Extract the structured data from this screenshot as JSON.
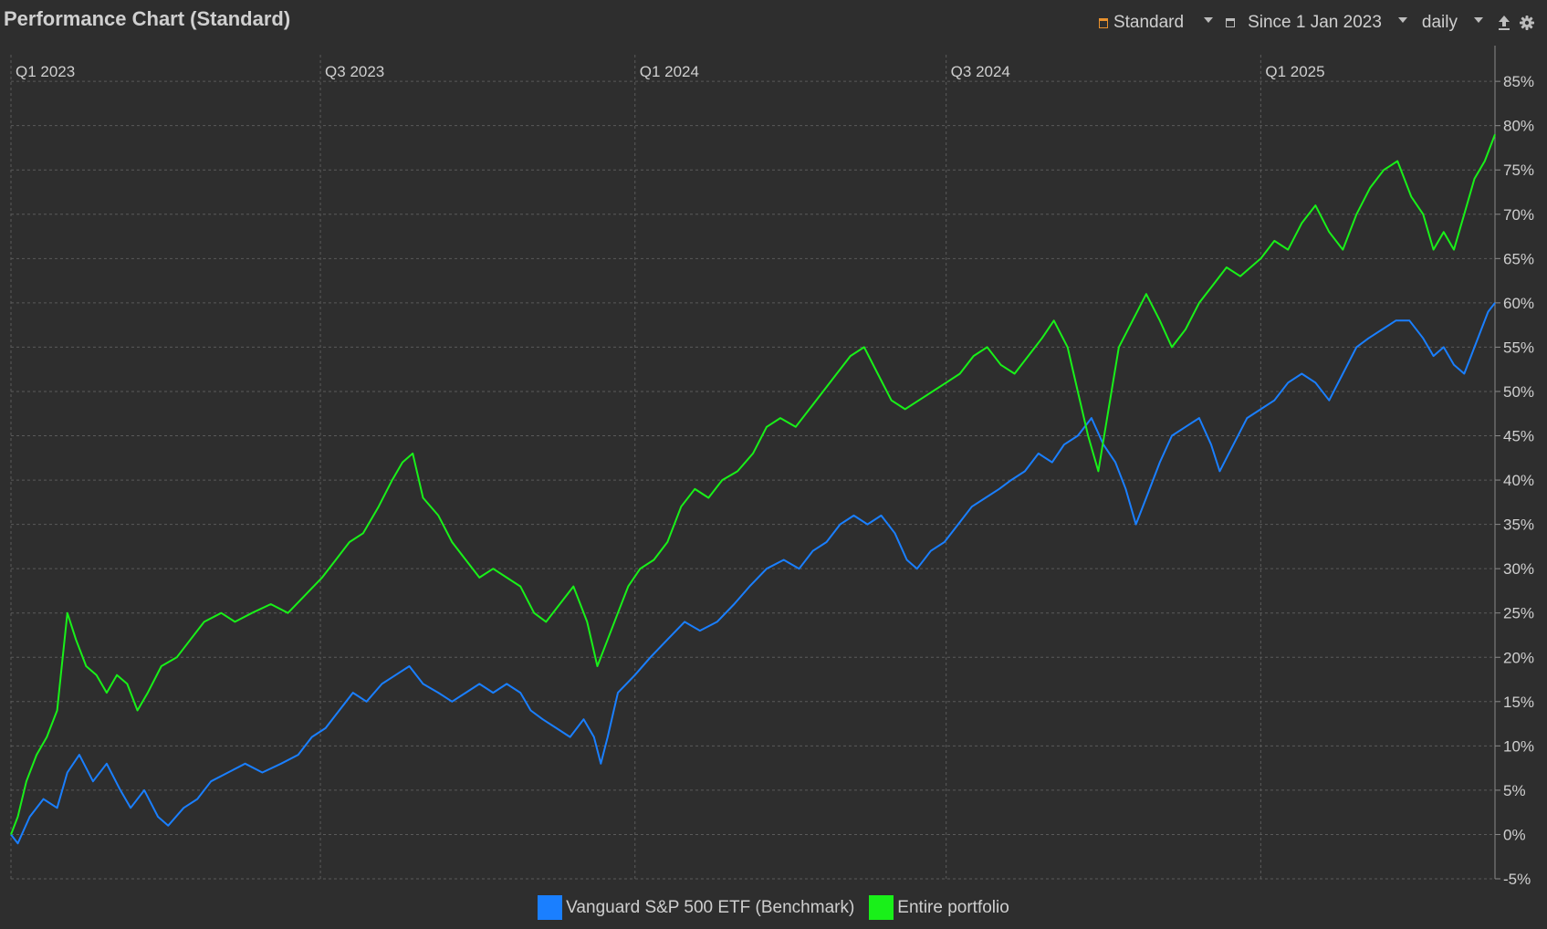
{
  "header": {
    "title": "Performance Chart (Standard)",
    "toolbar": {
      "view_label": "Standard",
      "period_label": "Since 1 Jan 2023",
      "interval_label": "daily"
    }
  },
  "colors": {
    "background": "#2e2e2e",
    "grid": "#5a5a5a",
    "benchmark": "#1a7fff",
    "portfolio": "#19f019",
    "accent": "#e8912e"
  },
  "chart_data": {
    "type": "line",
    "xlabel": "",
    "ylabel": "",
    "x_ticks": [
      "Q1 2023",
      "Q3 2023",
      "Q1 2024",
      "Q3 2024",
      "Q1 2025"
    ],
    "x_tick_dates": [
      "2023-01-01",
      "2023-07-01",
      "2024-01-01",
      "2024-07-01",
      "2025-01-01"
    ],
    "x_range": [
      "2023-01-01",
      "2025-05-18"
    ],
    "y_ticks": [
      "85%",
      "80%",
      "75%",
      "70%",
      "65%",
      "60%",
      "55%",
      "50%",
      "45%",
      "40%",
      "35%",
      "30%",
      "25%",
      "20%",
      "15%",
      "10%",
      "5%",
      "0%",
      "-5%"
    ],
    "ylim": [
      -5,
      88
    ],
    "y_unit": "%",
    "grid": true,
    "legend_position": "bottom-center",
    "series": [
      {
        "name": "Vanguard S&P 500 ETF (Benchmark)",
        "color": "#1a7fff",
        "points": [
          [
            "2023-01-01",
            0
          ],
          [
            "2023-01-05",
            -1
          ],
          [
            "2023-01-12",
            2
          ],
          [
            "2023-01-20",
            4
          ],
          [
            "2023-01-28",
            3
          ],
          [
            "2023-02-03",
            7
          ],
          [
            "2023-02-10",
            9
          ],
          [
            "2023-02-18",
            6
          ],
          [
            "2023-02-26",
            8
          ],
          [
            "2023-03-06",
            5
          ],
          [
            "2023-03-12",
            3
          ],
          [
            "2023-03-20",
            5
          ],
          [
            "2023-03-28",
            2
          ],
          [
            "2023-04-03",
            1
          ],
          [
            "2023-04-12",
            3
          ],
          [
            "2023-04-20",
            4
          ],
          [
            "2023-04-28",
            6
          ],
          [
            "2023-05-08",
            7
          ],
          [
            "2023-05-18",
            8
          ],
          [
            "2023-05-28",
            7
          ],
          [
            "2023-06-08",
            8
          ],
          [
            "2023-06-18",
            9
          ],
          [
            "2023-06-26",
            11
          ],
          [
            "2023-07-04",
            12
          ],
          [
            "2023-07-12",
            14
          ],
          [
            "2023-07-20",
            16
          ],
          [
            "2023-07-28",
            15
          ],
          [
            "2023-08-06",
            17
          ],
          [
            "2023-08-14",
            18
          ],
          [
            "2023-08-22",
            19
          ],
          [
            "2023-08-30",
            17
          ],
          [
            "2023-09-08",
            16
          ],
          [
            "2023-09-16",
            15
          ],
          [
            "2023-09-24",
            16
          ],
          [
            "2023-10-02",
            17
          ],
          [
            "2023-10-10",
            16
          ],
          [
            "2023-10-18",
            17
          ],
          [
            "2023-10-26",
            16
          ],
          [
            "2023-11-01",
            14
          ],
          [
            "2023-11-08",
            13
          ],
          [
            "2023-11-16",
            12
          ],
          [
            "2023-11-24",
            11
          ],
          [
            "2023-12-02",
            13
          ],
          [
            "2023-12-08",
            11
          ],
          [
            "2023-12-12",
            8
          ],
          [
            "2023-12-16",
            11
          ],
          [
            "2023-12-22",
            16
          ],
          [
            "2024-01-01",
            18
          ],
          [
            "2024-01-10",
            20
          ],
          [
            "2024-01-20",
            22
          ],
          [
            "2024-01-30",
            24
          ],
          [
            "2024-02-08",
            23
          ],
          [
            "2024-02-18",
            24
          ],
          [
            "2024-02-28",
            26
          ],
          [
            "2024-03-08",
            28
          ],
          [
            "2024-03-18",
            30
          ],
          [
            "2024-03-28",
            31
          ],
          [
            "2024-04-06",
            30
          ],
          [
            "2024-04-14",
            32
          ],
          [
            "2024-04-22",
            33
          ],
          [
            "2024-04-30",
            35
          ],
          [
            "2024-05-08",
            36
          ],
          [
            "2024-05-16",
            35
          ],
          [
            "2024-05-24",
            36
          ],
          [
            "2024-06-01",
            34
          ],
          [
            "2024-06-08",
            31
          ],
          [
            "2024-06-14",
            30
          ],
          [
            "2024-06-22",
            32
          ],
          [
            "2024-06-30",
            33
          ],
          [
            "2024-07-08",
            35
          ],
          [
            "2024-07-16",
            37
          ],
          [
            "2024-07-24",
            38
          ],
          [
            "2024-08-01",
            39
          ],
          [
            "2024-08-08",
            40
          ],
          [
            "2024-08-16",
            41
          ],
          [
            "2024-08-24",
            43
          ],
          [
            "2024-09-01",
            42
          ],
          [
            "2024-09-08",
            44
          ],
          [
            "2024-09-16",
            45
          ],
          [
            "2024-09-24",
            47
          ],
          [
            "2024-10-01",
            44
          ],
          [
            "2024-10-08",
            42
          ],
          [
            "2024-10-14",
            39
          ],
          [
            "2024-10-20",
            35
          ],
          [
            "2024-10-26",
            38
          ],
          [
            "2024-11-03",
            42
          ],
          [
            "2024-11-10",
            45
          ],
          [
            "2024-11-18",
            46
          ],
          [
            "2024-11-26",
            47
          ],
          [
            "2024-12-03",
            44
          ],
          [
            "2024-12-08",
            41
          ],
          [
            "2024-12-16",
            44
          ],
          [
            "2024-12-24",
            47
          ],
          [
            "2025-01-01",
            48
          ],
          [
            "2025-01-09",
            49
          ],
          [
            "2025-01-17",
            51
          ],
          [
            "2025-01-25",
            52
          ],
          [
            "2025-02-02",
            51
          ],
          [
            "2025-02-10",
            49
          ],
          [
            "2025-02-18",
            52
          ],
          [
            "2025-02-26",
            55
          ],
          [
            "2025-03-05",
            56
          ],
          [
            "2025-03-13",
            57
          ],
          [
            "2025-03-21",
            58
          ],
          [
            "2025-03-29",
            58
          ],
          [
            "2025-04-06",
            56
          ],
          [
            "2025-04-12",
            54
          ],
          [
            "2025-04-18",
            55
          ],
          [
            "2025-04-24",
            53
          ],
          [
            "2025-04-30",
            52
          ],
          [
            "2025-05-04",
            54
          ],
          [
            "2025-05-10",
            57
          ],
          [
            "2025-05-14",
            59
          ],
          [
            "2025-05-18",
            60
          ]
        ]
      },
      {
        "name": "Entire portfolio",
        "color": "#19f019",
        "points": [
          [
            "2023-01-01",
            0
          ],
          [
            "2023-01-05",
            2
          ],
          [
            "2023-01-10",
            6
          ],
          [
            "2023-01-16",
            9
          ],
          [
            "2023-01-22",
            11
          ],
          [
            "2023-01-28",
            14
          ],
          [
            "2023-02-03",
            25
          ],
          [
            "2023-02-08",
            22
          ],
          [
            "2023-02-14",
            19
          ],
          [
            "2023-02-20",
            18
          ],
          [
            "2023-02-26",
            16
          ],
          [
            "2023-03-04",
            18
          ],
          [
            "2023-03-10",
            17
          ],
          [
            "2023-03-16",
            14
          ],
          [
            "2023-03-22",
            16
          ],
          [
            "2023-03-30",
            19
          ],
          [
            "2023-04-08",
            20
          ],
          [
            "2023-04-16",
            22
          ],
          [
            "2023-04-24",
            24
          ],
          [
            "2023-05-04",
            25
          ],
          [
            "2023-05-12",
            24
          ],
          [
            "2023-05-22",
            25
          ],
          [
            "2023-06-02",
            26
          ],
          [
            "2023-06-12",
            25
          ],
          [
            "2023-06-22",
            27
          ],
          [
            "2023-07-02",
            29
          ],
          [
            "2023-07-10",
            31
          ],
          [
            "2023-07-18",
            33
          ],
          [
            "2023-07-26",
            34
          ],
          [
            "2023-08-04",
            37
          ],
          [
            "2023-08-12",
            40
          ],
          [
            "2023-08-18",
            42
          ],
          [
            "2023-08-24",
            43
          ],
          [
            "2023-08-30",
            38
          ],
          [
            "2023-09-08",
            36
          ],
          [
            "2023-09-16",
            33
          ],
          [
            "2023-09-24",
            31
          ],
          [
            "2023-10-02",
            29
          ],
          [
            "2023-10-10",
            30
          ],
          [
            "2023-10-18",
            29
          ],
          [
            "2023-10-26",
            28
          ],
          [
            "2023-11-03",
            25
          ],
          [
            "2023-11-10",
            24
          ],
          [
            "2023-11-18",
            26
          ],
          [
            "2023-11-26",
            28
          ],
          [
            "2023-12-04",
            24
          ],
          [
            "2023-12-10",
            19
          ],
          [
            "2023-12-16",
            22
          ],
          [
            "2023-12-22",
            25
          ],
          [
            "2023-12-28",
            28
          ],
          [
            "2024-01-04",
            30
          ],
          [
            "2024-01-12",
            31
          ],
          [
            "2024-01-20",
            33
          ],
          [
            "2024-01-28",
            37
          ],
          [
            "2024-02-05",
            39
          ],
          [
            "2024-02-13",
            38
          ],
          [
            "2024-02-21",
            40
          ],
          [
            "2024-03-01",
            41
          ],
          [
            "2024-03-10",
            43
          ],
          [
            "2024-03-18",
            46
          ],
          [
            "2024-03-26",
            47
          ],
          [
            "2024-04-04",
            46
          ],
          [
            "2024-04-12",
            48
          ],
          [
            "2024-04-20",
            50
          ],
          [
            "2024-04-28",
            52
          ],
          [
            "2024-05-06",
            54
          ],
          [
            "2024-05-14",
            55
          ],
          [
            "2024-05-22",
            52
          ],
          [
            "2024-05-30",
            49
          ],
          [
            "2024-06-07",
            48
          ],
          [
            "2024-06-15",
            49
          ],
          [
            "2024-06-23",
            50
          ],
          [
            "2024-07-01",
            51
          ],
          [
            "2024-07-09",
            52
          ],
          [
            "2024-07-17",
            54
          ],
          [
            "2024-07-25",
            55
          ],
          [
            "2024-08-02",
            53
          ],
          [
            "2024-08-10",
            52
          ],
          [
            "2024-08-18",
            54
          ],
          [
            "2024-08-26",
            56
          ],
          [
            "2024-09-02",
            58
          ],
          [
            "2024-09-10",
            55
          ],
          [
            "2024-09-16",
            50
          ],
          [
            "2024-09-22",
            45
          ],
          [
            "2024-09-28",
            41
          ],
          [
            "2024-10-04",
            48
          ],
          [
            "2024-10-10",
            55
          ],
          [
            "2024-10-18",
            58
          ],
          [
            "2024-10-26",
            61
          ],
          [
            "2024-11-03",
            58
          ],
          [
            "2024-11-10",
            55
          ],
          [
            "2024-11-18",
            57
          ],
          [
            "2024-11-26",
            60
          ],
          [
            "2024-12-04",
            62
          ],
          [
            "2024-12-12",
            64
          ],
          [
            "2024-12-20",
            63
          ],
          [
            "2025-01-01",
            65
          ],
          [
            "2025-01-09",
            67
          ],
          [
            "2025-01-17",
            66
          ],
          [
            "2025-01-25",
            69
          ],
          [
            "2025-02-02",
            71
          ],
          [
            "2025-02-10",
            68
          ],
          [
            "2025-02-18",
            66
          ],
          [
            "2025-02-26",
            70
          ],
          [
            "2025-03-06",
            73
          ],
          [
            "2025-03-14",
            75
          ],
          [
            "2025-03-22",
            76
          ],
          [
            "2025-03-30",
            72
          ],
          [
            "2025-04-06",
            70
          ],
          [
            "2025-04-12",
            66
          ],
          [
            "2025-04-18",
            68
          ],
          [
            "2025-04-24",
            66
          ],
          [
            "2025-04-30",
            70
          ],
          [
            "2025-05-06",
            74
          ],
          [
            "2025-05-12",
            76
          ],
          [
            "2025-05-18",
            79
          ]
        ]
      }
    ]
  }
}
